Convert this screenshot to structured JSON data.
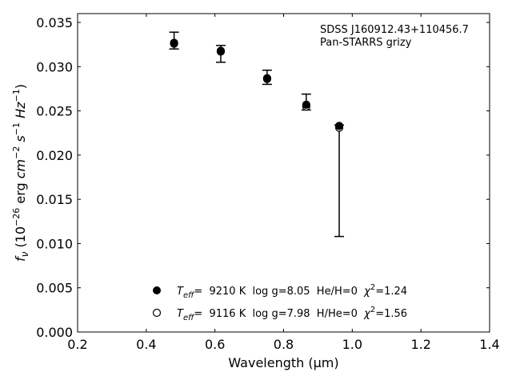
{
  "chart_data": {
    "type": "scatter",
    "xlabel": "Wavelength (μm)",
    "ylabel_parts": {
      "f": "f",
      "nu": "ν",
      "open": " (10",
      "exp1": "−26",
      "erg": " erg ",
      "cm": "cm",
      "exp2": "−2",
      "s": "s",
      "exp3": "−1",
      "hz": "Hz",
      "exp4": "−1",
      "close": ")"
    },
    "xlim": [
      0.2,
      1.4
    ],
    "ylim": [
      0.0,
      0.036
    ],
    "xticks": [
      "0.2",
      "0.4",
      "0.6",
      "0.8",
      "1.0",
      "1.2",
      "1.4"
    ],
    "yticks": [
      "0.000",
      "0.005",
      "0.010",
      "0.015",
      "0.020",
      "0.025",
      "0.030",
      "0.035"
    ],
    "annotation": {
      "line1": "SDSS J160912.43+110456.7",
      "line2": "Pan-STARRS grizy"
    },
    "observed": [
      {
        "x": 0.481,
        "y": 0.0329,
        "ylo": 0.032,
        "yhi": 0.0339
      },
      {
        "x": 0.617,
        "y": 0.0314,
        "ylo": 0.0305,
        "yhi": 0.0324
      },
      {
        "x": 0.752,
        "y": 0.0288,
        "ylo": 0.028,
        "yhi": 0.0296
      },
      {
        "x": 0.866,
        "y": 0.026,
        "ylo": 0.0251,
        "yhi": 0.0269
      },
      {
        "x": 0.962,
        "y": 0.0233,
        "ylo": 0.0108,
        "yhi": 0.0234
      }
    ],
    "series": [
      {
        "marker": "filled",
        "T": "T",
        "sub": "eff",
        "eq": "=  9210 K  log g=8.05  He/H=0  ",
        "chi": "χ",
        "chiexp": "2",
        "chival": "=1.24",
        "values": [
          {
            "x": 0.481,
            "y": 0.0327
          },
          {
            "x": 0.617,
            "y": 0.0318
          },
          {
            "x": 0.752,
            "y": 0.0287
          },
          {
            "x": 0.866,
            "y": 0.0257
          },
          {
            "x": 0.962,
            "y": 0.0233
          }
        ]
      },
      {
        "marker": "open",
        "T": "T",
        "sub": "eff",
        "eq": "=  9116 K  log g=7.98  H/He=0  ",
        "chi": "χ",
        "chiexp": "2",
        "chival": "=1.56",
        "values": [
          {
            "x": 0.481,
            "y": 0.0326
          },
          {
            "x": 0.617,
            "y": 0.0317
          },
          {
            "x": 0.752,
            "y": 0.0286
          },
          {
            "x": 0.866,
            "y": 0.0255
          },
          {
            "x": 0.962,
            "y": 0.0231
          }
        ]
      }
    ]
  }
}
